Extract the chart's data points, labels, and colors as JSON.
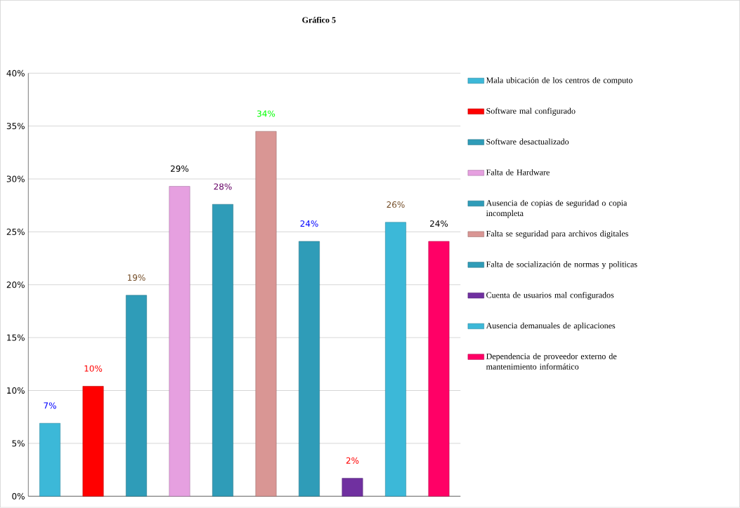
{
  "chart_data": {
    "type": "bar",
    "title": "Gráfico 5",
    "categories": [
      null,
      null,
      null,
      null,
      null,
      null,
      null,
      null,
      null,
      null
    ],
    "ylim": [
      0,
      40
    ],
    "yticks": [
      {
        "value": 0,
        "label": "0%"
      },
      {
        "value": 5,
        "label": "5%"
      },
      {
        "value": 10,
        "label": "10%"
      },
      {
        "value": 15,
        "label": "15%"
      },
      {
        "value": 20,
        "label": "20%"
      },
      {
        "value": 25,
        "label": "25%"
      },
      {
        "value": 30,
        "label": "30%"
      },
      {
        "value": 35,
        "label": "35%"
      },
      {
        "value": 40,
        "label": "40%"
      }
    ],
    "grid": "y",
    "legend": "right",
    "series": [
      {
        "name": "Mala ubicación de los centros de computo",
        "color": "#3cb8d8",
        "values": [
          6.9,
          null,
          null,
          null,
          null,
          null,
          null,
          null,
          null,
          null
        ],
        "value_labels": [
          "7%",
          null,
          null,
          null,
          null,
          null,
          null,
          null,
          null,
          null
        ]
      },
      {
        "name": "Software mal configurado",
        "color": "#ff0000",
        "values": [
          null,
          10.4,
          null,
          null,
          null,
          null,
          null,
          null,
          null,
          null
        ],
        "value_labels": [
          null,
          "10%",
          null,
          null,
          null,
          null,
          null,
          null,
          null,
          null
        ]
      },
      {
        "name": "Software desactualizado",
        "color": "#2f9cb8",
        "values": [
          null,
          null,
          19.0,
          null,
          null,
          null,
          null,
          null,
          null,
          null
        ],
        "value_labels": [
          null,
          null,
          "19%",
          null,
          null,
          null,
          null,
          null,
          null,
          null
        ]
      },
      {
        "name": "Falta de Hardware",
        "color": "#e6a0e0",
        "values": [
          null,
          null,
          null,
          29.3,
          null,
          null,
          null,
          null,
          null,
          null
        ],
        "value_labels": [
          null,
          null,
          null,
          "29%",
          null,
          null,
          null,
          null,
          null,
          null
        ]
      },
      {
        "name": "Ausencia de copias de seguridad o copia incompleta",
        "color": "#2f9cb8",
        "values": [
          null,
          null,
          null,
          null,
          27.6,
          null,
          null,
          null,
          null,
          null
        ],
        "value_labels": [
          null,
          null,
          null,
          null,
          "28%",
          null,
          null,
          null,
          null,
          null
        ]
      },
      {
        "name": "Falta se seguridad para archivos digitales",
        "color": "#d99694",
        "values": [
          null,
          null,
          null,
          null,
          null,
          34.5,
          null,
          null,
          null,
          null
        ],
        "value_labels": [
          null,
          null,
          null,
          null,
          null,
          "34%",
          null,
          null,
          null,
          null
        ]
      },
      {
        "name": "Falta de socialización de normas y politicas",
        "color": "#2f9cb8",
        "values": [
          null,
          null,
          null,
          null,
          null,
          null,
          24.1,
          null,
          null,
          null
        ],
        "value_labels": [
          null,
          null,
          null,
          null,
          null,
          null,
          "24%",
          null,
          null,
          null
        ]
      },
      {
        "name": "Cuenta de usuarios mal configurados",
        "color": "#7030a0",
        "values": [
          null,
          null,
          null,
          null,
          null,
          null,
          null,
          1.7,
          null,
          null
        ],
        "value_labels": [
          null,
          null,
          null,
          null,
          null,
          null,
          null,
          "2%",
          null,
          null
        ]
      },
      {
        "name": "Ausencia demanuales de aplicaciones",
        "color": "#3cb8d8",
        "values": [
          null,
          null,
          null,
          null,
          null,
          null,
          null,
          null,
          25.9,
          null
        ],
        "value_labels": [
          null,
          null,
          null,
          null,
          null,
          null,
          null,
          null,
          "26%",
          null
        ]
      },
      {
        "name": "Dependencia de proveedor externo de mantenimiento informático",
        "color": "#ff0066",
        "values": [
          null,
          null,
          null,
          null,
          null,
          null,
          null,
          null,
          null,
          24.1
        ],
        "value_labels": [
          null,
          null,
          null,
          null,
          null,
          null,
          null,
          null,
          null,
          "24%"
        ]
      }
    ]
  }
}
